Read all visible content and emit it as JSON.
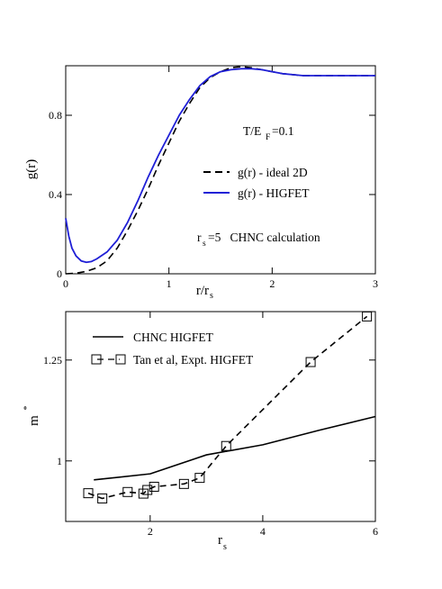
{
  "chart_data": [
    {
      "type": "line",
      "xlabel_main": "r/r",
      "xlabel_sub": "s",
      "ylabel": "g(r)",
      "xlim": [
        0,
        3
      ],
      "ylim": [
        0,
        1.05
      ],
      "x_ticks": [
        0,
        1,
        2,
        3
      ],
      "y_ticks": [
        0,
        0.4,
        0.8
      ],
      "x_tick_labels": [
        "0",
        "1",
        "2",
        "3"
      ],
      "y_tick_labels": [
        "0",
        "0.4",
        "0.8"
      ],
      "annotations": {
        "temp_prefix": "T/E",
        "temp_sub": "F",
        "temp_suffix": "=0.1",
        "rs_prefix": "r",
        "rs_sub": "s",
        "rs_suffix": "=5   CHNC calculation"
      },
      "legend": {
        "placement": "right-middle",
        "entries": [
          {
            "label": "g(r) - ideal 2D",
            "series": 0
          },
          {
            "label": "g(r) - HIGFET",
            "series": 1
          }
        ]
      },
      "series": [
        {
          "name": "g(r) - ideal 2D",
          "color": "#000000",
          "dash": "8,5",
          "x": [
            0,
            0.1,
            0.2,
            0.3,
            0.4,
            0.5,
            0.6,
            0.7,
            0.8,
            0.9,
            1.0,
            1.1,
            1.2,
            1.3,
            1.4,
            1.5,
            1.6,
            1.7,
            1.8,
            1.9,
            2.0,
            2.1,
            2.2,
            2.3,
            2.4,
            2.5,
            2.6,
            2.7,
            2.8,
            2.9,
            3.0
          ],
          "y": [
            0.0,
            0.003,
            0.012,
            0.03,
            0.065,
            0.13,
            0.22,
            0.32,
            0.43,
            0.55,
            0.66,
            0.77,
            0.86,
            0.94,
            0.99,
            1.02,
            1.04,
            1.045,
            1.04,
            1.03,
            1.02,
            1.01,
            1.005,
            1.0,
            1.0,
            1.0,
            1.0,
            1.0,
            1.0,
            1.0,
            1.0
          ]
        },
        {
          "name": "g(r) - HIGFET",
          "color": "#1f1fd6",
          "dash": "",
          "x": [
            0,
            0.03,
            0.06,
            0.1,
            0.15,
            0.2,
            0.25,
            0.3,
            0.4,
            0.5,
            0.6,
            0.7,
            0.8,
            0.9,
            1.0,
            1.1,
            1.2,
            1.3,
            1.4,
            1.5,
            1.6,
            1.7,
            1.8,
            1.9,
            2.0,
            2.1,
            2.2,
            2.3,
            2.4,
            2.5,
            2.6,
            2.7,
            2.8,
            2.9,
            3.0
          ],
          "y": [
            0.28,
            0.19,
            0.13,
            0.09,
            0.065,
            0.058,
            0.062,
            0.075,
            0.11,
            0.17,
            0.26,
            0.37,
            0.49,
            0.6,
            0.7,
            0.8,
            0.88,
            0.95,
            0.995,
            1.02,
            1.03,
            1.035,
            1.035,
            1.03,
            1.02,
            1.01,
            1.005,
            1.0,
            1.0,
            1.0,
            1.0,
            1.0,
            1.0,
            1.0,
            1.0
          ]
        }
      ]
    },
    {
      "type": "line",
      "xlabel_main": "r",
      "xlabel_sub": "s",
      "ylabel_main": "m",
      "ylabel_sup": "*",
      "xlim": [
        0.5,
        6
      ],
      "ylim": [
        0.85,
        1.37
      ],
      "x_ticks": [
        2,
        4,
        6
      ],
      "y_ticks": [
        1,
        1.25
      ],
      "x_tick_labels": [
        "2",
        "4",
        "6"
      ],
      "y_tick_labels": [
        "1",
        "1.25"
      ],
      "legend": {
        "placement": "top-left",
        "entries": [
          {
            "label": "CHNC  HIGFET",
            "series": 0
          },
          {
            "label": "Tan et al, Expt. HIGFET",
            "series": 1
          }
        ]
      },
      "series": [
        {
          "name": "CHNC  HIGFET",
          "color": "#000000",
          "dash": "",
          "marker": "none",
          "x": [
            1.0,
            2.0,
            3.0,
            4.0,
            5.0,
            6.0
          ],
          "y": [
            0.953,
            0.968,
            1.015,
            1.04,
            1.076,
            1.11
          ]
        },
        {
          "name": "Tan et al, Expt. HIGFET",
          "color": "#000000",
          "dash": "7,5",
          "marker": "square",
          "x": [
            0.9,
            1.15,
            1.6,
            1.88,
            1.95,
            2.07,
            2.6,
            2.88,
            3.35,
            4.85,
            5.85
          ],
          "y": [
            0.92,
            0.907,
            0.923,
            0.919,
            0.928,
            0.936,
            0.943,
            0.958,
            1.037,
            1.245,
            1.358
          ]
        }
      ]
    }
  ]
}
